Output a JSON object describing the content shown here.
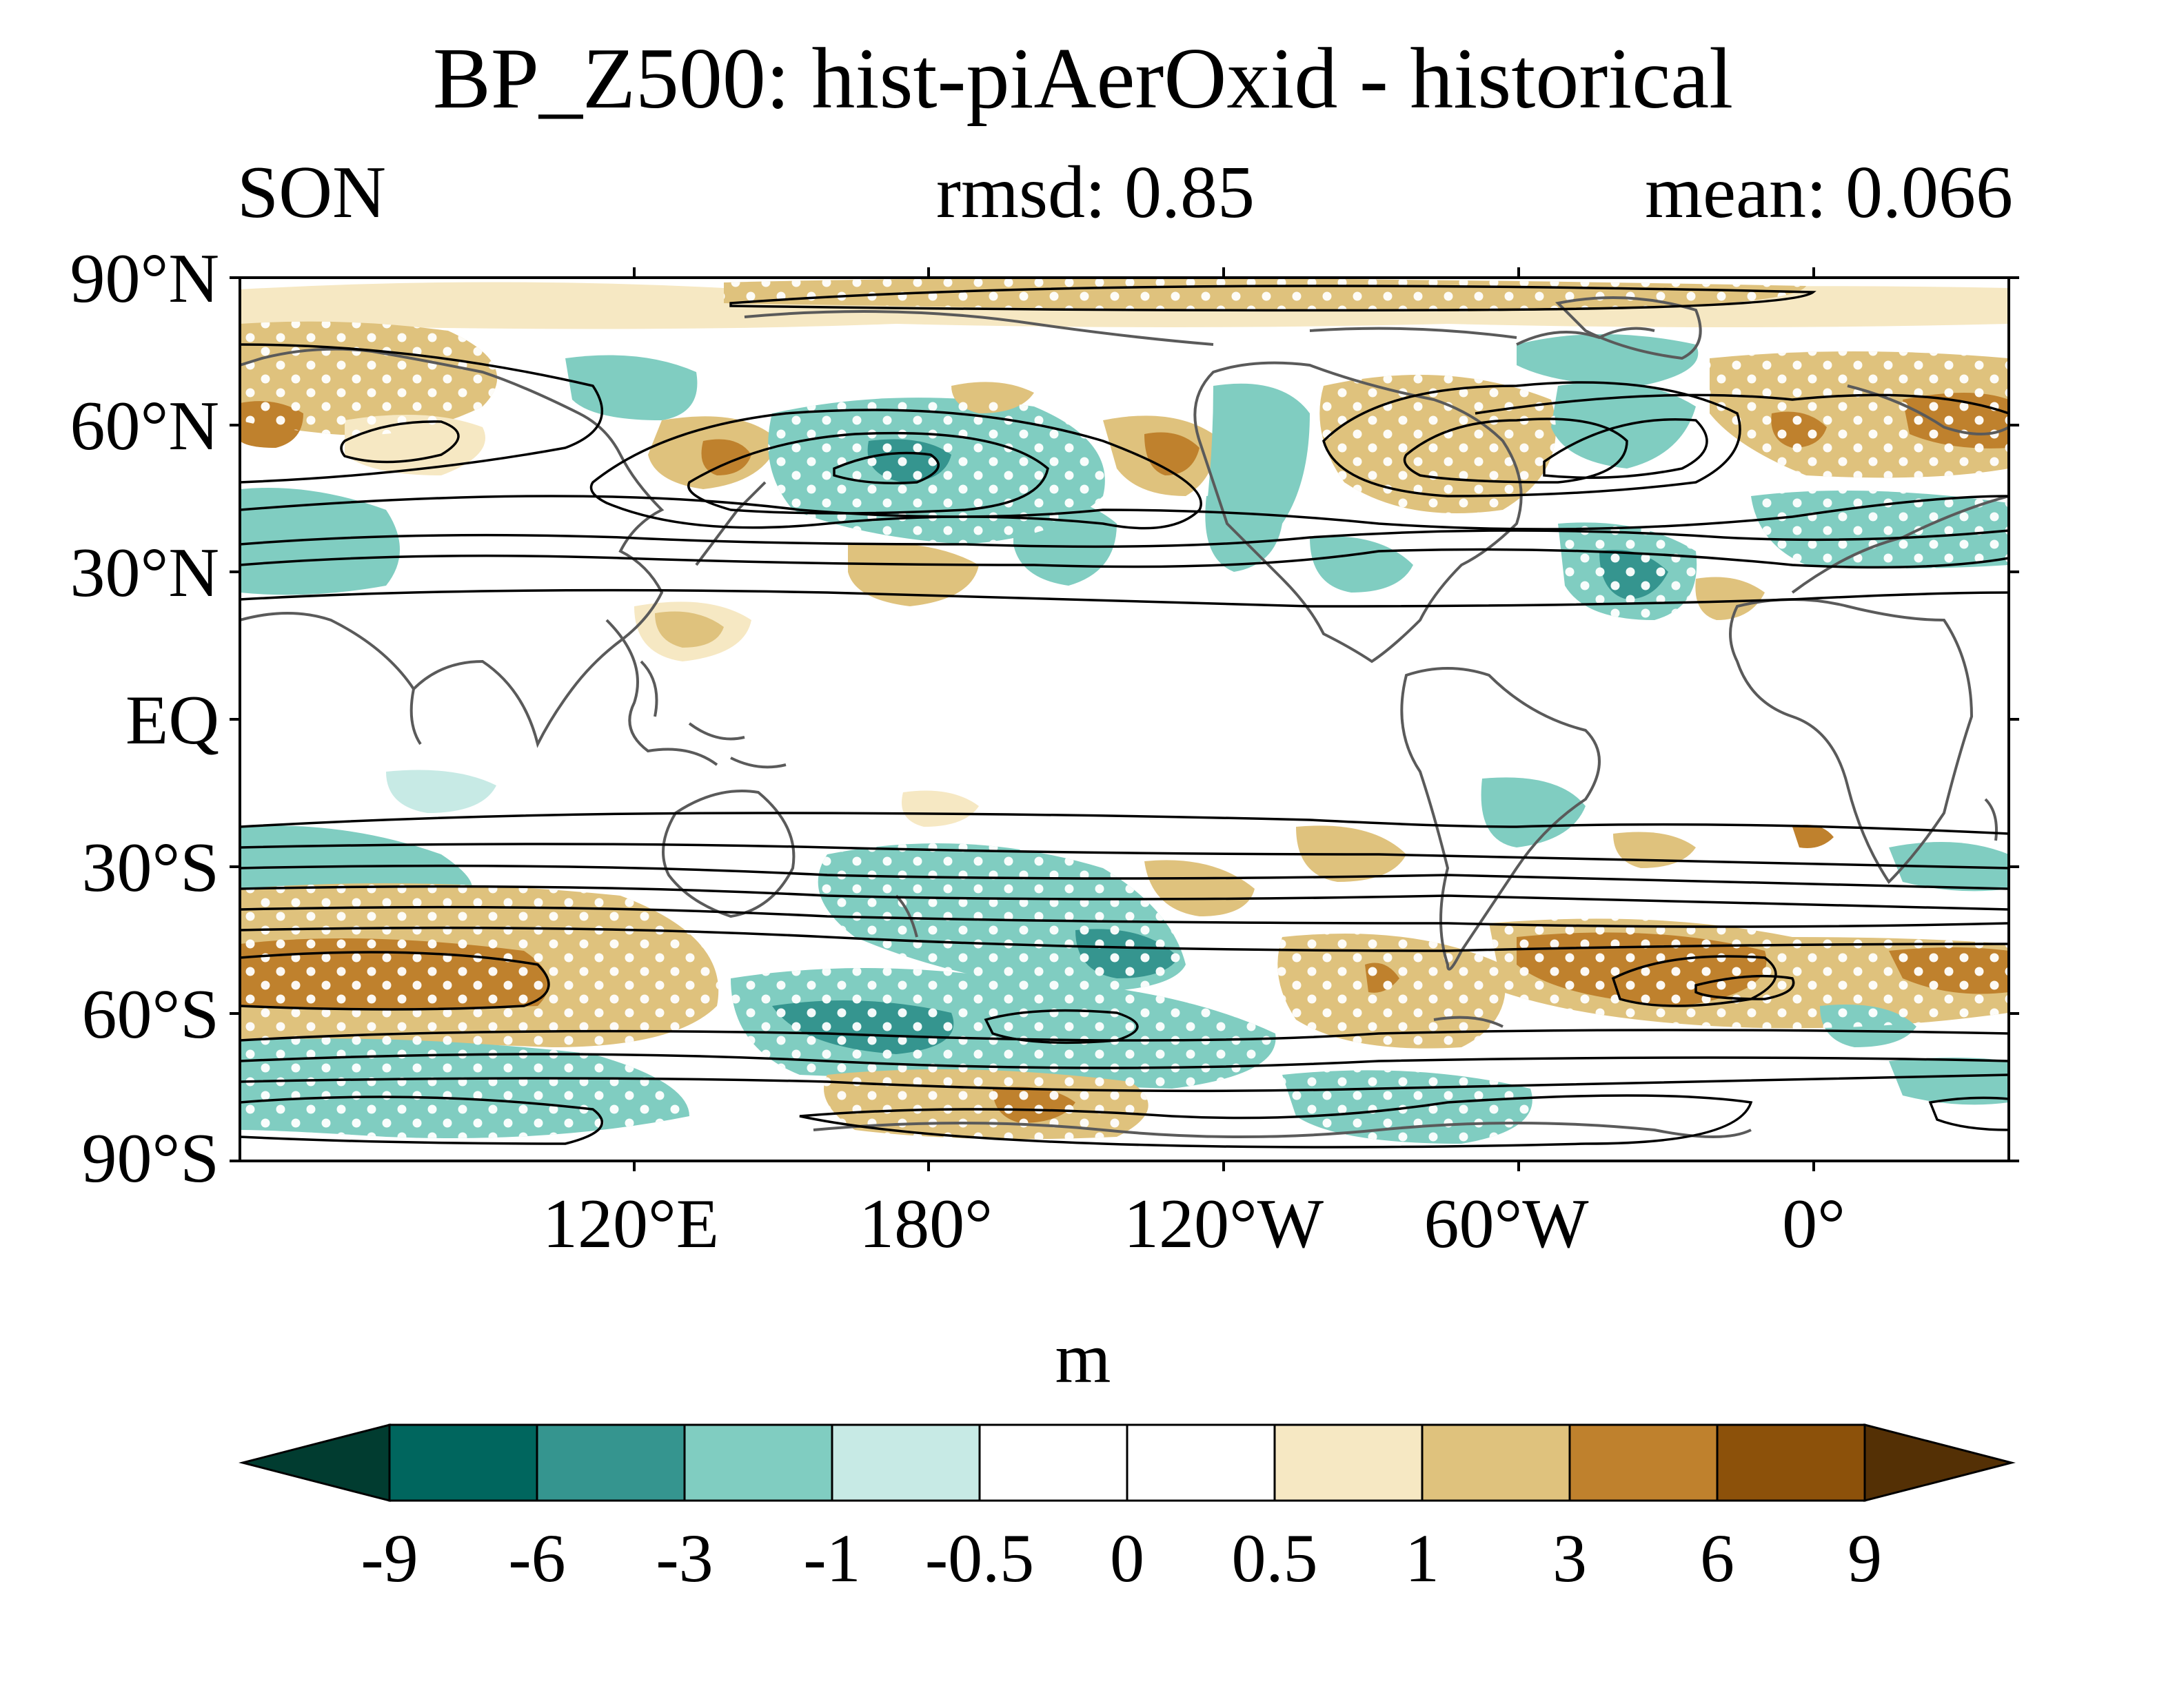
{
  "title": "BP_Z500: hist-piAerOxid - historical",
  "season": "SON",
  "rmsd": "rmsd: 0.85",
  "mean": "mean: 0.066",
  "map": {
    "lat_labels": [
      "90°N",
      "60°N",
      "30°N",
      "EQ",
      "30°S",
      "60°S",
      "90°S"
    ],
    "lon_labels": [
      "120°E",
      "180°",
      "120°W",
      "60°W",
      "0°"
    ],
    "lon_range": "40°E to 40°E (global, 0° not centered)",
    "lat_range": [
      -90,
      90
    ]
  },
  "colorbar": {
    "units": "m",
    "levels": [
      "-9",
      "-6",
      "-3",
      "-1",
      "-0.5",
      "0",
      "0.5",
      "1",
      "3",
      "6",
      "9"
    ],
    "colors": [
      "#013c30",
      "#00665e",
      "#35958f",
      "#80cdc1",
      "#c7eae5",
      "#ffffff",
      "#ffffff",
      "#f6e8c3",
      "#dfc27d",
      "#bf812d",
      "#8c510a",
      "#543005"
    ]
  },
  "chart_data": {
    "type": "map",
    "title": "BP_Z500: hist-piAerOxid - historical",
    "variable": "BP_Z500 difference (m)",
    "season": "SON",
    "rmsd": 0.85,
    "mean": 0.066,
    "contour_levels": [
      -9,
      -6,
      -3,
      -1,
      -0.5,
      0,
      0.5,
      1,
      3,
      6,
      9
    ]
  }
}
